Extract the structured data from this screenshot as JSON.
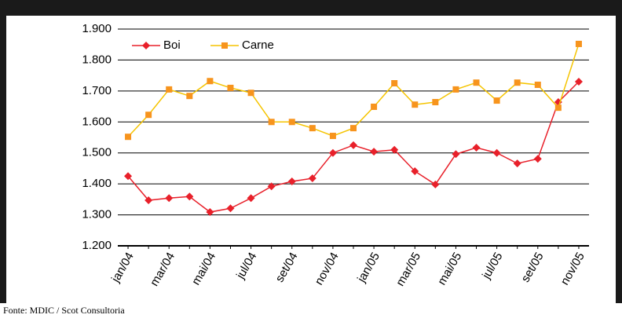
{
  "chart_data": {
    "type": "line",
    "categories": [
      "jan/04",
      null,
      "mar/04",
      null,
      "mai/04",
      null,
      "jul/04",
      null,
      "set/04",
      null,
      "nov/04",
      null,
      "jan/05",
      null,
      "mar/05",
      null,
      "mai/05",
      null,
      "jul/05",
      null,
      "set/05",
      null,
      "nov/05"
    ],
    "series": [
      {
        "name": "Boi",
        "color": "#e8202a",
        "marker": "diamond",
        "marker_color": "#e8202a",
        "values": [
          1425,
          1347,
          1354,
          1359,
          1309,
          1321,
          1354,
          1392,
          1408,
          1418,
          1500,
          1525,
          1504,
          1510,
          1441,
          1398,
          1496,
          1517,
          1500,
          1466,
          1481,
          1664,
          1730
        ]
      },
      {
        "name": "Carne",
        "color": "#f5c400",
        "marker": "square",
        "marker_color": "#f7941d",
        "values": [
          1552,
          1623,
          1705,
          1684,
          1732,
          1710,
          1694,
          1600,
          1600,
          1580,
          1555,
          1580,
          1649,
          1725,
          1656,
          1664,
          1705,
          1727,
          1669,
          1727,
          1720,
          1646,
          1852
        ]
      }
    ],
    "ylim": [
      1200,
      1900
    ],
    "yticks": [
      {
        "value": 1200,
        "label": "1.200"
      },
      {
        "value": 1300,
        "label": "1.300"
      },
      {
        "value": 1400,
        "label": "1.400"
      },
      {
        "value": 1500,
        "label": "1.500"
      },
      {
        "value": 1600,
        "label": "1.600"
      },
      {
        "value": 1700,
        "label": "1.700"
      },
      {
        "value": 1800,
        "label": "1.800"
      },
      {
        "value": 1900,
        "label": "1.900"
      }
    ],
    "grid": true,
    "legend": "top-left",
    "source": "Fonte: MDIC / Scot Consultoria"
  }
}
